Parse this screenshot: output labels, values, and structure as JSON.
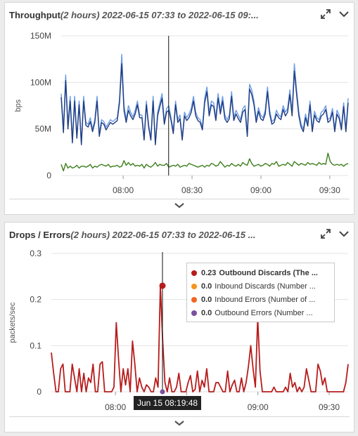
{
  "panels": [
    {
      "title": "Throughput",
      "range": "(2 hours) 2022-06-15 07:33 to 2022-06-15 09:...",
      "yaxis_label": "bps",
      "ytick_labels": [
        "150M",
        "100M",
        "50M",
        "0"
      ],
      "xtick_labels": [
        "08:00",
        "08:30",
        "09:00",
        "09:30"
      ]
    },
    {
      "title": "Drops / Errors",
      "range": "(2 hours) 2022-06-15 07:33 to 2022-06-15 ...",
      "yaxis_label": "packets/sec",
      "ytick_labels": [
        "0.3",
        "0.2",
        "0.1",
        "0"
      ],
      "xtick_labels": [
        "08:00",
        "08:30",
        "09:00",
        "09:30"
      ]
    }
  ],
  "legend": [
    {
      "value": "0.23",
      "label": "Outbound Discards (The ...",
      "color": "#b71c1c",
      "active": true
    },
    {
      "value": "0.0",
      "label": "Inbound Discards (Number ...",
      "color": "#f7941d",
      "active": false
    },
    {
      "value": "0.0",
      "label": "Inbound Errors (Number of ...",
      "color": "#f26522",
      "active": false
    },
    {
      "value": "0.0",
      "label": "Outbound Errors (Number ...",
      "color": "#7b519d",
      "active": false
    }
  ],
  "tooltip": "Jun 15 08:19:48",
  "icons": {
    "expand": "expand-icon",
    "menu": "chevron-down-icon",
    "collapse": "collapse-chevron-icon"
  },
  "chart_data": [
    {
      "type": "line",
      "title": "Throughput",
      "ylabel": "bps",
      "ylim": [
        0,
        150000000
      ],
      "x_unit": "minutes since 07:33",
      "crosshair_time": "08:19:48",
      "series": [
        {
          "color": "#6b9be6",
          "values": [
            88,
            50,
            108,
            55,
            85,
            38,
            85,
            42,
            80,
            35,
            85,
            57,
            55,
            62,
            50,
            60,
            85,
            45,
            60,
            58,
            52,
            56,
            60,
            58,
            60,
            62,
            82,
            130,
            75,
            60,
            75,
            68,
            63,
            70,
            80,
            65,
            65,
            40,
            80,
            55,
            40,
            85,
            35,
            68,
            78,
            88,
            58,
            72,
            75,
            62,
            48,
            80,
            60,
            65,
            40,
            68,
            62,
            66,
            72,
            85,
            68,
            62,
            60,
            52,
            83,
            95,
            68,
            80,
            78,
            62,
            88,
            70,
            85,
            65,
            60,
            65,
            90,
            62,
            70,
            65,
            60,
            72,
            75,
            45,
            98,
            92,
            80,
            60,
            73,
            65,
            62,
            70,
            95,
            70,
            58,
            60,
            70,
            65,
            63,
            75,
            68,
            72,
            92,
            68,
            120,
            92,
            68,
            55,
            50,
            66,
            56,
            80,
            50,
            69,
            62,
            60,
            68,
            70,
            75,
            60,
            62,
            72,
            50,
            70,
            65,
            52,
            78,
            50,
            83
          ]
        },
        {
          "color": "#1f3b80",
          "values": [
            84,
            46,
            102,
            50,
            80,
            35,
            80,
            40,
            76,
            33,
            80,
            54,
            52,
            58,
            47,
            57,
            80,
            42,
            57,
            55,
            49,
            53,
            57,
            55,
            57,
            59,
            78,
            120,
            70,
            57,
            70,
            64,
            60,
            66,
            76,
            62,
            62,
            38,
            76,
            52,
            38,
            80,
            33,
            64,
            74,
            83,
            55,
            68,
            70,
            59,
            45,
            76,
            57,
            61,
            38,
            64,
            59,
            62,
            68,
            80,
            64,
            59,
            57,
            49,
            78,
            90,
            64,
            76,
            74,
            59,
            83,
            66,
            80,
            61,
            57,
            61,
            85,
            59,
            66,
            61,
            57,
            68,
            71,
            42,
            93,
            87,
            76,
            57,
            69,
            61,
            59,
            66,
            90,
            66,
            55,
            57,
            66,
            62,
            60,
            71,
            64,
            68,
            87,
            64,
            112,
            87,
            64,
            52,
            47,
            62,
            53,
            76,
            47,
            65,
            59,
            57,
            64,
            66,
            71,
            57,
            59,
            68,
            47,
            66,
            61,
            49,
            74,
            47,
            78
          ]
        },
        {
          "color": "#3d7f1d",
          "values": [
            12,
            5,
            13,
            8,
            10,
            8,
            9,
            11,
            8,
            10,
            10,
            9,
            10,
            12,
            8,
            10,
            9,
            11,
            12,
            11,
            10,
            12,
            9,
            10,
            10,
            11,
            9,
            10,
            16,
            11,
            14,
            11,
            13,
            10,
            11,
            10,
            12,
            8,
            12,
            10,
            9,
            11,
            14,
            10,
            12,
            11,
            11,
            13,
            9,
            10,
            11,
            10,
            12,
            9,
            10,
            11,
            10,
            13,
            12,
            11,
            10,
            9,
            10,
            11,
            9,
            11,
            10,
            13,
            12,
            10,
            11,
            15,
            12,
            9,
            11,
            10,
            13,
            11,
            10,
            12,
            10,
            14,
            12,
            11,
            18,
            13,
            10,
            11,
            12,
            10,
            11,
            13,
            12,
            10,
            13,
            12,
            15,
            10,
            11,
            12,
            11,
            14,
            12,
            10,
            15,
            13,
            11,
            13,
            12,
            11,
            14,
            12,
            13,
            12,
            11,
            14,
            12,
            13,
            12,
            24,
            15,
            12,
            11,
            12,
            11,
            12,
            10,
            12,
            13
          ]
        }
      ]
    },
    {
      "type": "line",
      "title": "Drops / Errors",
      "ylabel": "packets/sec",
      "ylim": [
        0,
        0.3
      ],
      "x_unit": "minutes since 07:33",
      "crosshair_time": "08:19:48",
      "highlight": {
        "x": 46.8,
        "y": 0.23
      },
      "series": [
        {
          "name": "Outbound Discards",
          "color": "#b71c1c",
          "values": [
            0.085,
            0.04,
            0,
            0,
            0.05,
            0.06,
            0,
            0,
            0,
            0.06,
            0.03,
            0,
            0.05,
            0,
            0.04,
            0,
            0.03,
            0.02,
            0.06,
            0,
            0,
            0.06,
            0.065,
            0,
            0,
            0,
            0,
            0.01,
            0.15,
            0.07,
            0,
            0.05,
            0.015,
            0.05,
            0,
            0.11,
            0.06,
            0,
            0.03,
            0.01,
            0,
            0.015,
            0.01,
            0,
            0,
            0.03,
            0.01,
            0.23,
            0.11,
            0.02,
            0,
            0.03,
            0,
            0,
            0.01,
            0.04,
            0,
            0,
            0,
            0.02,
            0.035,
            0,
            0.005,
            0.045,
            0,
            0.025,
            0.01,
            0.05,
            0,
            0,
            0,
            0.02,
            0.02,
            0.01,
            0,
            0,
            0.045,
            0,
            0.015,
            0.025,
            0,
            0,
            0.03,
            0,
            0.02,
            0.055,
            0.1,
            0.05,
            0.01,
            0.16,
            0.045,
            0,
            0,
            0,
            0,
            0,
            0.01,
            0,
            0,
            0,
            0,
            0.01,
            0,
            0.04,
            0.01,
            0.02,
            0,
            0.01,
            0,
            0.01,
            0.05,
            0.025,
            0,
            0,
            0,
            0.06,
            0.045,
            0.015,
            0.03,
            0,
            0,
            0,
            0,
            0,
            0,
            0,
            0,
            0.02,
            0.06
          ]
        },
        {
          "name": "Inbound Discards",
          "color": "#f7941d",
          "values": [
            0
          ]
        },
        {
          "name": "Inbound Errors",
          "color": "#f26522",
          "values": [
            0
          ]
        },
        {
          "name": "Outbound Errors",
          "color": "#7b519d",
          "values": [
            0
          ]
        }
      ]
    }
  ]
}
